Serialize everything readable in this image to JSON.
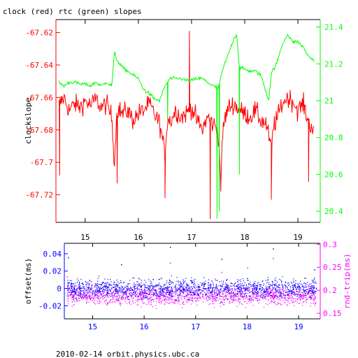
{
  "chart_data": [
    {
      "type": "line",
      "title": "clock (red) rtc (green) slopes",
      "xlabel": "",
      "ylabel": "clockslope",
      "y2label": "",
      "xlim": [
        14.45,
        19.42
      ],
      "ylim": [
        -67.737,
        -67.612
      ],
      "y2lim": [
        20.34,
        21.44
      ],
      "grid": false,
      "x_ticks": [
        15,
        16,
        17,
        18,
        19
      ],
      "y_ticks": [
        -67.62,
        -67.64,
        -67.66,
        -67.68,
        -67.7,
        -67.72
      ],
      "y_tick_labels": [
        "-67.62",
        "-67.64",
        "-67.66",
        "-67.68",
        "-67.7",
        "-67.72"
      ],
      "y2_ticks": [
        21.4,
        21.2,
        21,
        20.8,
        20.6,
        20.4
      ],
      "y2_tick_labels": [
        "21.4",
        "21.2",
        "21",
        "20.8",
        "20.6",
        "20.4"
      ],
      "series": [
        {
          "name": "clock",
          "axis": "left",
          "color": "#ff0000",
          "x": [
            14.5,
            14.6,
            14.7,
            14.8,
            14.9,
            15.0,
            15.1,
            15.2,
            15.3,
            15.4,
            15.5,
            15.55,
            15.6,
            15.7,
            15.8,
            15.9,
            16.0,
            16.1,
            16.2,
            16.3,
            16.4,
            16.5,
            16.55,
            16.6,
            16.7,
            16.8,
            16.9,
            17.0,
            17.1,
            17.2,
            17.3,
            17.4,
            17.5,
            17.55,
            17.6,
            17.7,
            17.8,
            17.9,
            18.0,
            18.1,
            18.2,
            18.3,
            18.4,
            18.5,
            18.55,
            18.6,
            18.7,
            18.8,
            18.9,
            19.0,
            19.1,
            19.2,
            19.3
          ],
          "values": [
            -67.665,
            -67.66,
            -67.668,
            -67.664,
            -67.666,
            -67.662,
            -67.665,
            -67.661,
            -67.666,
            -67.664,
            -67.672,
            -67.7,
            -67.666,
            -67.67,
            -67.668,
            -67.674,
            -67.67,
            -67.668,
            -67.664,
            -67.67,
            -67.676,
            -67.695,
            -67.672,
            -67.675,
            -67.668,
            -67.672,
            -67.67,
            -67.666,
            -67.674,
            -67.68,
            -67.672,
            -67.676,
            -67.68,
            -67.71,
            -67.676,
            -67.666,
            -67.664,
            -67.668,
            -67.67,
            -67.672,
            -67.668,
            -67.674,
            -67.676,
            -67.692,
            -67.676,
            -67.674,
            -67.664,
            -67.66,
            -67.662,
            -67.668,
            -67.664,
            -67.675,
            -67.68
          ],
          "noise": 0.006,
          "spikes": [
            {
              "x": 14.52,
              "y": -67.708
            },
            {
              "x": 15.6,
              "y": -67.713
            },
            {
              "x": 16.5,
              "y": -67.722
            },
            {
              "x": 16.96,
              "y": -67.619
            },
            {
              "x": 17.35,
              "y": -67.735
            },
            {
              "x": 17.55,
              "y": -67.718
            },
            {
              "x": 18.5,
              "y": -67.723
            },
            {
              "x": 19.2,
              "y": -67.712
            }
          ]
        },
        {
          "name": "rtc",
          "axis": "right",
          "color": "#00ff00",
          "x": [
            14.5,
            14.6,
            14.7,
            14.8,
            14.9,
            15.0,
            15.1,
            15.2,
            15.3,
            15.4,
            15.5,
            15.55,
            15.6,
            15.7,
            15.8,
            15.9,
            16.0,
            16.1,
            16.2,
            16.3,
            16.4,
            16.5,
            16.6,
            16.7,
            16.8,
            16.9,
            17.0,
            17.1,
            17.2,
            17.3,
            17.4,
            17.5,
            17.6,
            17.7,
            17.8,
            17.85,
            17.9,
            18.0,
            18.1,
            18.2,
            18.3,
            18.4,
            18.45,
            18.5,
            18.6,
            18.7,
            18.8,
            18.9,
            19.0,
            19.1,
            19.2,
            19.3
          ],
          "values": [
            21.1,
            21.08,
            21.1,
            21.1,
            21.09,
            21.09,
            21.08,
            21.1,
            21.08,
            21.1,
            21.08,
            21.26,
            21.22,
            21.18,
            21.16,
            21.14,
            21.12,
            21.06,
            21.04,
            21.01,
            21.0,
            21.08,
            21.12,
            21.12,
            21.12,
            21.11,
            21.11,
            21.12,
            21.12,
            21.1,
            21.08,
            21.07,
            21.18,
            21.26,
            21.34,
            21.36,
            21.18,
            21.17,
            21.16,
            21.16,
            21.14,
            21.05,
            21.0,
            21.15,
            21.2,
            21.3,
            21.36,
            21.32,
            21.32,
            21.29,
            21.24,
            21.22
          ],
          "noise": 0.012,
          "spikes": [
            {
              "x": 16.55,
              "y": 20.9
            },
            {
              "x": 17.48,
              "y": 20.36
            },
            {
              "x": 17.52,
              "y": 20.4
            },
            {
              "x": 17.9,
              "y": 20.6
            }
          ]
        }
      ]
    },
    {
      "type": "scatter",
      "title": "",
      "xlabel": "",
      "ylabel": "offset(ms)",
      "y2label": "rnd-trip(ms)",
      "xlim": [
        14.45,
        19.42
      ],
      "ylim": [
        -0.035,
        0.052
      ],
      "y2lim": [
        0.138,
        0.302
      ],
      "grid": false,
      "x_ticks": [
        15,
        16,
        17,
        18,
        19
      ],
      "y_ticks": [
        0.04,
        0.02,
        0,
        -0.02
      ],
      "y_tick_labels": [
        "0.04",
        "0.02",
        "0",
        "-0.02"
      ],
      "y2_ticks": [
        0.3,
        0.25,
        0.2,
        0.15
      ],
      "y2_tick_labels": [
        "0.3",
        "0.25",
        "0.2",
        "0.15"
      ],
      "series": [
        {
          "name": "offset",
          "axis": "left",
          "color": "#0000ff",
          "center": 0.0,
          "spread": 0.011,
          "outliers": [
            [
              14.52,
              0.036
            ],
            [
              15.55,
              0.028
            ],
            [
              16.5,
              0.048
            ],
            [
              17.5,
              0.034
            ],
            [
              18.5,
              0.046
            ],
            [
              19.3,
              0.022
            ]
          ]
        },
        {
          "name": "rnd-trip",
          "axis": "right",
          "color": "#ff00ff",
          "center": 0.19,
          "spread": 0.02,
          "outliers": [
            [
              14.5,
              0.23
            ],
            [
              16.5,
              0.26
            ],
            [
              17.5,
              0.24
            ],
            [
              18.0,
              0.25
            ],
            [
              18.5,
              0.27
            ]
          ]
        }
      ]
    }
  ],
  "footer": {
    "caption": "2010-02-14  orbit.physics.ubc.ca"
  },
  "colors": {
    "clock": "#ff0000",
    "rtc": "#00ff00",
    "left_bottom_axis": "#0000ff",
    "right_bottom_axis": "#ff00ff",
    "frame": "#000000",
    "bottom_x_ticks": "#0000ff"
  }
}
